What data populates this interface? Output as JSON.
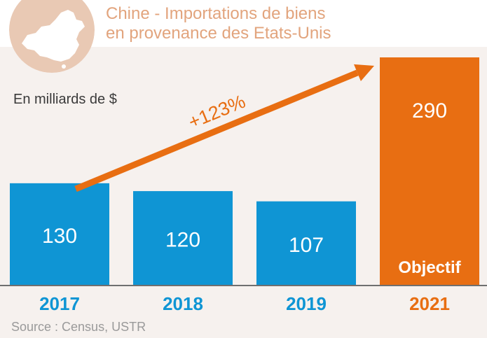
{
  "title_line_1": "Chine - Importations de biens",
  "title_line_2": "en provenance des Etats-Unis",
  "unit_label": "En milliards de $",
  "source": "Source : Census, USTR",
  "colors": {
    "bar_actual": "#0f95d4",
    "bar_target": "#e86e12",
    "title": "#e2a47d",
    "arrow": "#e86e12",
    "background": "#f6f1ee"
  },
  "chart_data": {
    "type": "bar",
    "categories": [
      "2017",
      "2018",
      "2019",
      "2021"
    ],
    "values": [
      130,
      120,
      107,
      290
    ],
    "value_labels": [
      "130",
      "120",
      "107",
      "290"
    ],
    "bar_notes": [
      "",
      "",
      "",
      "Objectif"
    ],
    "highlight": [
      false,
      false,
      false,
      true
    ],
    "annotation": {
      "text": "+123%",
      "from": "2017",
      "to": "2021"
    },
    "title": "Chine - Importations de biens en provenance des Etats-Unis",
    "ylabel": "En milliards de $",
    "ylim": [
      0,
      290
    ],
    "grid": false,
    "legend": "none"
  }
}
